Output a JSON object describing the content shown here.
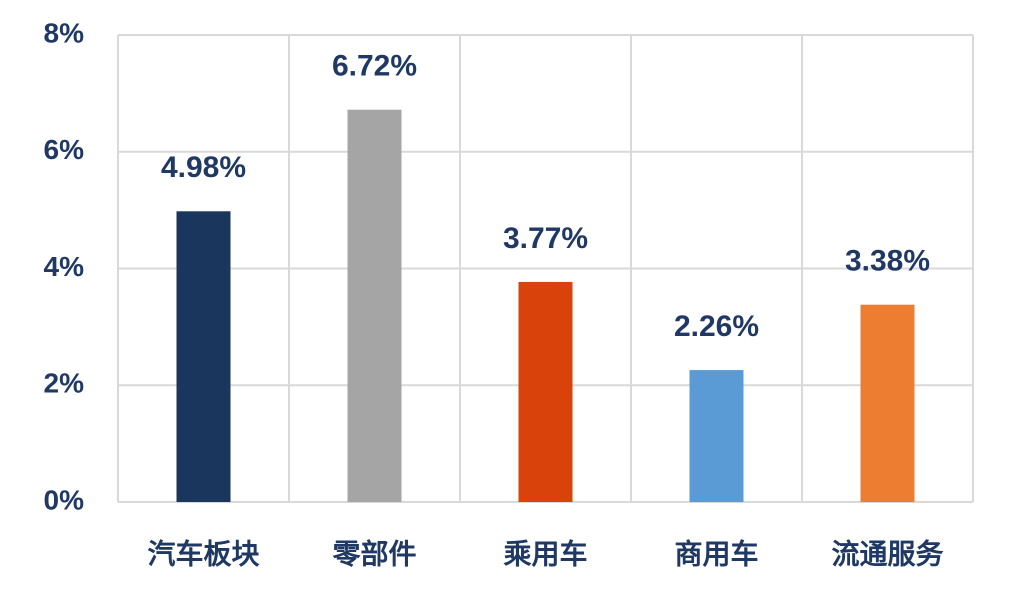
{
  "chart_data": {
    "type": "bar",
    "categories": [
      "汽车板块",
      "零部件",
      "乘用车",
      "商用车",
      "流通服务"
    ],
    "values": [
      4.98,
      6.72,
      3.77,
      2.26,
      3.38
    ],
    "value_labels": [
      "4.98%",
      "6.72%",
      "3.77%",
      "2.26%",
      "3.38%"
    ],
    "colors": [
      "#1b365d",
      "#a5a5a5",
      "#d9430b",
      "#5b9bd5",
      "#ed7d31"
    ],
    "ylim": [
      0,
      8
    ],
    "yticks": [
      {
        "value": 0,
        "label": "0%"
      },
      {
        "value": 2,
        "label": "2%"
      },
      {
        "value": 4,
        "label": "4%"
      },
      {
        "value": 6,
        "label": "6%"
      },
      {
        "value": 8,
        "label": "8%"
      }
    ],
    "grid": true
  }
}
